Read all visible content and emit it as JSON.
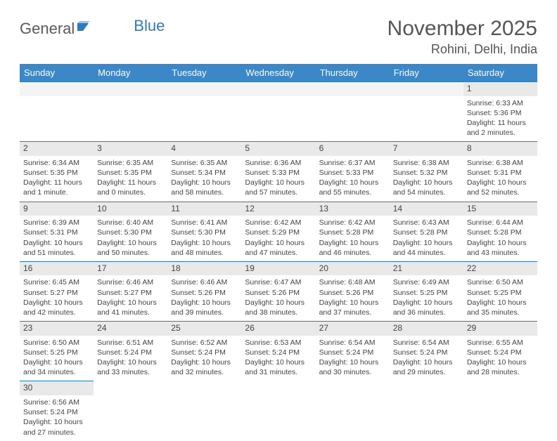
{
  "brand": {
    "part1": "General",
    "part2": "Blue"
  },
  "title": "November 2025",
  "location": "Rohini, Delhi, India",
  "colors": {
    "header_bg": "#3b87c8",
    "header_text": "#ffffff",
    "rule": "#2f7bbf",
    "daynum_bg": "#e9e9e9",
    "text": "#444444"
  },
  "weekdays": [
    "Sunday",
    "Monday",
    "Tuesday",
    "Wednesday",
    "Thursday",
    "Friday",
    "Saturday"
  ],
  "weeks": [
    [
      null,
      null,
      null,
      null,
      null,
      null,
      {
        "n": "1",
        "sr": "Sunrise: 6:33 AM",
        "ss": "Sunset: 5:36 PM",
        "d1": "Daylight: 11 hours",
        "d2": "and 2 minutes."
      }
    ],
    [
      {
        "n": "2",
        "sr": "Sunrise: 6:34 AM",
        "ss": "Sunset: 5:35 PM",
        "d1": "Daylight: 11 hours",
        "d2": "and 1 minute."
      },
      {
        "n": "3",
        "sr": "Sunrise: 6:35 AM",
        "ss": "Sunset: 5:35 PM",
        "d1": "Daylight: 11 hours",
        "d2": "and 0 minutes."
      },
      {
        "n": "4",
        "sr": "Sunrise: 6:35 AM",
        "ss": "Sunset: 5:34 PM",
        "d1": "Daylight: 10 hours",
        "d2": "and 58 minutes."
      },
      {
        "n": "5",
        "sr": "Sunrise: 6:36 AM",
        "ss": "Sunset: 5:33 PM",
        "d1": "Daylight: 10 hours",
        "d2": "and 57 minutes."
      },
      {
        "n": "6",
        "sr": "Sunrise: 6:37 AM",
        "ss": "Sunset: 5:33 PM",
        "d1": "Daylight: 10 hours",
        "d2": "and 55 minutes."
      },
      {
        "n": "7",
        "sr": "Sunrise: 6:38 AM",
        "ss": "Sunset: 5:32 PM",
        "d1": "Daylight: 10 hours",
        "d2": "and 54 minutes."
      },
      {
        "n": "8",
        "sr": "Sunrise: 6:38 AM",
        "ss": "Sunset: 5:31 PM",
        "d1": "Daylight: 10 hours",
        "d2": "and 52 minutes."
      }
    ],
    [
      {
        "n": "9",
        "sr": "Sunrise: 6:39 AM",
        "ss": "Sunset: 5:31 PM",
        "d1": "Daylight: 10 hours",
        "d2": "and 51 minutes."
      },
      {
        "n": "10",
        "sr": "Sunrise: 6:40 AM",
        "ss": "Sunset: 5:30 PM",
        "d1": "Daylight: 10 hours",
        "d2": "and 50 minutes."
      },
      {
        "n": "11",
        "sr": "Sunrise: 6:41 AM",
        "ss": "Sunset: 5:30 PM",
        "d1": "Daylight: 10 hours",
        "d2": "and 48 minutes."
      },
      {
        "n": "12",
        "sr": "Sunrise: 6:42 AM",
        "ss": "Sunset: 5:29 PM",
        "d1": "Daylight: 10 hours",
        "d2": "and 47 minutes."
      },
      {
        "n": "13",
        "sr": "Sunrise: 6:42 AM",
        "ss": "Sunset: 5:28 PM",
        "d1": "Daylight: 10 hours",
        "d2": "and 46 minutes."
      },
      {
        "n": "14",
        "sr": "Sunrise: 6:43 AM",
        "ss": "Sunset: 5:28 PM",
        "d1": "Daylight: 10 hours",
        "d2": "and 44 minutes."
      },
      {
        "n": "15",
        "sr": "Sunrise: 6:44 AM",
        "ss": "Sunset: 5:28 PM",
        "d1": "Daylight: 10 hours",
        "d2": "and 43 minutes."
      }
    ],
    [
      {
        "n": "16",
        "sr": "Sunrise: 6:45 AM",
        "ss": "Sunset: 5:27 PM",
        "d1": "Daylight: 10 hours",
        "d2": "and 42 minutes."
      },
      {
        "n": "17",
        "sr": "Sunrise: 6:46 AM",
        "ss": "Sunset: 5:27 PM",
        "d1": "Daylight: 10 hours",
        "d2": "and 41 minutes."
      },
      {
        "n": "18",
        "sr": "Sunrise: 6:46 AM",
        "ss": "Sunset: 5:26 PM",
        "d1": "Daylight: 10 hours",
        "d2": "and 39 minutes."
      },
      {
        "n": "19",
        "sr": "Sunrise: 6:47 AM",
        "ss": "Sunset: 5:26 PM",
        "d1": "Daylight: 10 hours",
        "d2": "and 38 minutes."
      },
      {
        "n": "20",
        "sr": "Sunrise: 6:48 AM",
        "ss": "Sunset: 5:26 PM",
        "d1": "Daylight: 10 hours",
        "d2": "and 37 minutes."
      },
      {
        "n": "21",
        "sr": "Sunrise: 6:49 AM",
        "ss": "Sunset: 5:25 PM",
        "d1": "Daylight: 10 hours",
        "d2": "and 36 minutes."
      },
      {
        "n": "22",
        "sr": "Sunrise: 6:50 AM",
        "ss": "Sunset: 5:25 PM",
        "d1": "Daylight: 10 hours",
        "d2": "and 35 minutes."
      }
    ],
    [
      {
        "n": "23",
        "sr": "Sunrise: 6:50 AM",
        "ss": "Sunset: 5:25 PM",
        "d1": "Daylight: 10 hours",
        "d2": "and 34 minutes."
      },
      {
        "n": "24",
        "sr": "Sunrise: 6:51 AM",
        "ss": "Sunset: 5:24 PM",
        "d1": "Daylight: 10 hours",
        "d2": "and 33 minutes."
      },
      {
        "n": "25",
        "sr": "Sunrise: 6:52 AM",
        "ss": "Sunset: 5:24 PM",
        "d1": "Daylight: 10 hours",
        "d2": "and 32 minutes."
      },
      {
        "n": "26",
        "sr": "Sunrise: 6:53 AM",
        "ss": "Sunset: 5:24 PM",
        "d1": "Daylight: 10 hours",
        "d2": "and 31 minutes."
      },
      {
        "n": "27",
        "sr": "Sunrise: 6:54 AM",
        "ss": "Sunset: 5:24 PM",
        "d1": "Daylight: 10 hours",
        "d2": "and 30 minutes."
      },
      {
        "n": "28",
        "sr": "Sunrise: 6:54 AM",
        "ss": "Sunset: 5:24 PM",
        "d1": "Daylight: 10 hours",
        "d2": "and 29 minutes."
      },
      {
        "n": "29",
        "sr": "Sunrise: 6:55 AM",
        "ss": "Sunset: 5:24 PM",
        "d1": "Daylight: 10 hours",
        "d2": "and 28 minutes."
      }
    ],
    [
      {
        "n": "30",
        "sr": "Sunrise: 6:56 AM",
        "ss": "Sunset: 5:24 PM",
        "d1": "Daylight: 10 hours",
        "d2": "and 27 minutes."
      },
      null,
      null,
      null,
      null,
      null,
      null
    ]
  ]
}
